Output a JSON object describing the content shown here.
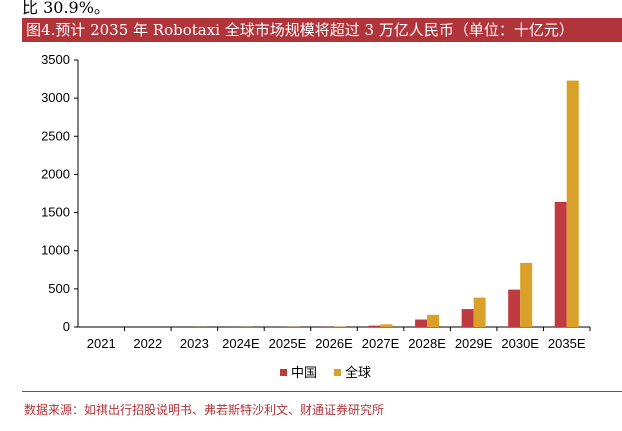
{
  "top_fragment": "比 30.9%。",
  "chart_data": {
    "type": "bar",
    "title": "图4.预计 2035 年 Robotaxi 全球市场规模将超过 3 万亿人民币（单位：十亿元）",
    "categories": [
      "2021",
      "2022",
      "2023",
      "2024E",
      "2025E",
      "2026E",
      "2027E",
      "2028E",
      "2029E",
      "2030E",
      "2035E"
    ],
    "series": [
      {
        "name": "中国",
        "color": "#be3b3f",
        "values": [
          0,
          0,
          0,
          1,
          1,
          2,
          18,
          98,
          235,
          490,
          1640
        ]
      },
      {
        "name": "全球",
        "color": "#d9a02a",
        "values": [
          0,
          0,
          1,
          2,
          3,
          5,
          35,
          160,
          385,
          840,
          3230
        ]
      }
    ],
    "ylim": [
      0,
      3500
    ],
    "yticks": [
      "0",
      "500",
      "1000",
      "1500",
      "2000",
      "2500",
      "3000",
      "3500"
    ],
    "ytick_values": [
      0,
      500,
      1000,
      1500,
      2000,
      2500,
      3000,
      3500
    ],
    "legend_position": "bottom",
    "grid": false
  },
  "source": "数据来源：如祺出行招股说明书、弗若斯特沙利文、财通证券研究所"
}
